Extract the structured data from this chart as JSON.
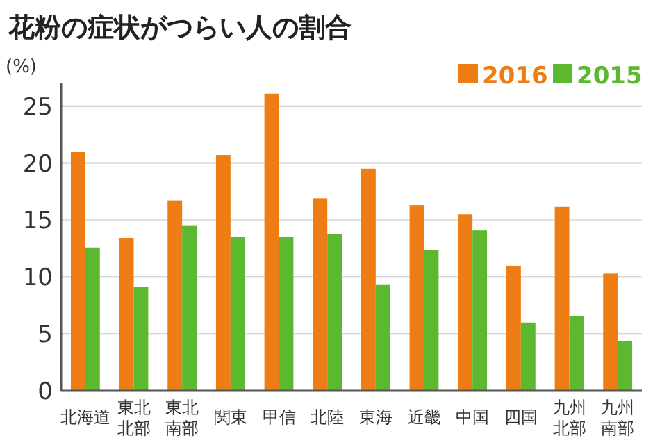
{
  "chart_data": {
    "type": "bar",
    "title": "花粉の症状がつらい人の割合",
    "ylabel": "(%)",
    "categories": [
      "北海道",
      "東北北部",
      "東北南部",
      "関東",
      "甲信",
      "北陸",
      "東海",
      "近畿",
      "中国",
      "四国",
      "九州北部",
      "九州南部"
    ],
    "series": [
      {
        "name": "2016",
        "color": "#ee7d14",
        "values": [
          21.0,
          13.4,
          16.7,
          20.7,
          26.1,
          16.9,
          19.5,
          16.3,
          15.5,
          11.0,
          16.2,
          10.3
        ]
      },
      {
        "name": "2015",
        "color": "#5cb82e",
        "values": [
          12.6,
          9.1,
          14.5,
          13.5,
          13.5,
          13.8,
          9.3,
          12.4,
          14.1,
          6.0,
          6.6,
          4.4
        ]
      }
    ],
    "ylim": [
      0,
      27
    ],
    "yticks": [
      0,
      5,
      10,
      15,
      20,
      25
    ],
    "grid": "y",
    "legend": "top right"
  }
}
